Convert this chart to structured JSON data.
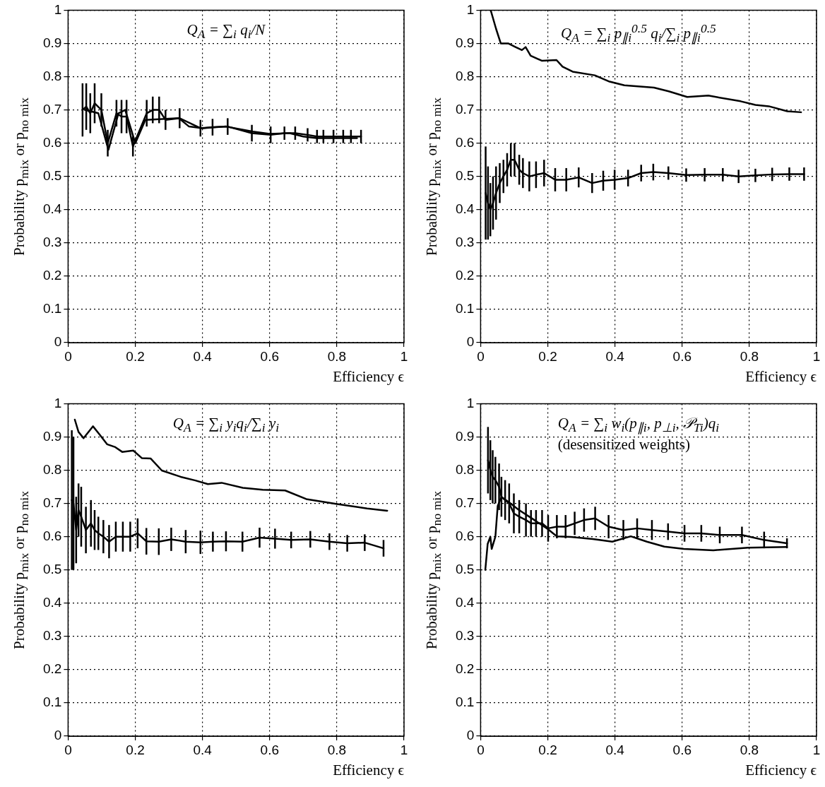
{
  "chart_data": [
    {
      "type": "line",
      "xlabel": "Efficiency ϵ",
      "ylabel": "Probability p$_{mix}$ or p$_{no mix}$",
      "annotations": [
        "Q$_{A}$ = ∑$_{i}$ q$_{i}$/N"
      ],
      "xlim": [
        0,
        1
      ],
      "ylim": [
        0,
        1
      ],
      "xticks": [
        0,
        0.2,
        0.4,
        0.6,
        0.8,
        1
      ],
      "yticks": [
        0,
        0.1,
        0.2,
        0.3,
        0.4,
        0.5,
        0.6,
        0.7,
        0.8,
        0.9,
        1
      ],
      "grid": true,
      "marker": "none",
      "series": [
        {
          "color": "#000000",
          "x": [
            0.043,
            0.054,
            0.066,
            0.079,
            0.099,
            0.118,
            0.144,
            0.159,
            0.174,
            0.193,
            0.234,
            0.252,
            0.271,
            0.29,
            0.332,
            0.394,
            0.43,
            0.475,
            0.547,
            0.603,
            0.644,
            0.676,
            0.713,
            0.741,
            0.76,
            0.79,
            0.819,
            0.842,
            0.872
          ],
          "values": [
            0.7,
            0.71,
            0.69,
            0.72,
            0.7,
            0.6,
            0.69,
            0.68,
            0.68,
            0.59,
            0.69,
            0.7,
            0.7,
            0.67,
            0.675,
            0.645,
            0.648,
            0.65,
            0.63,
            0.625,
            0.63,
            0.63,
            0.625,
            0.62,
            0.62,
            0.62,
            0.62,
            0.62,
            0.62
          ],
          "errors": [
            0.08,
            0.07,
            0.06,
            0.06,
            0.05,
            0.04,
            0.04,
            0.05,
            0.05,
            0.03,
            0.04,
            0.04,
            0.04,
            0.03,
            0.03,
            0.025,
            0.025,
            0.025,
            0.025,
            0.025,
            0.02,
            0.02,
            0.02,
            0.02,
            0.02,
            0.02,
            0.02,
            0.02,
            0.02
          ]
        },
        {
          "color": "#000000",
          "x": [
            0.05,
            0.09,
            0.12,
            0.15,
            0.17,
            0.2,
            0.23,
            0.33,
            0.36,
            0.4,
            0.47,
            0.55,
            0.6,
            0.66,
            0.7,
            0.74,
            0.8,
            0.86
          ],
          "values": [
            0.7,
            0.69,
            0.58,
            0.69,
            0.7,
            0.6,
            0.67,
            0.675,
            0.65,
            0.645,
            0.65,
            0.635,
            0.628,
            0.63,
            0.62,
            0.615,
            0.615,
            0.615
          ]
        }
      ]
    },
    {
      "type": "line",
      "xlabel": "Efficiency ϵ",
      "ylabel": "Probability p$_{mix}$ or p$_{no mix}$",
      "annotations": [
        "Q$_{A}$ = ∑$_{i}$ p$_{∥i}$$^{0.5}$ q$_{i}$/∑$_{i}$ p$_{∥i}$$^{0.5}$"
      ],
      "xlim": [
        0,
        1
      ],
      "ylim": [
        0,
        1
      ],
      "xticks": [
        0,
        0.2,
        0.4,
        0.6,
        0.8,
        1
      ],
      "yticks": [
        0,
        0.1,
        0.2,
        0.3,
        0.4,
        0.5,
        0.6,
        0.7,
        0.8,
        0.9,
        1
      ],
      "grid": true,
      "marker": "none",
      "series": [
        {
          "color": "#000000",
          "x": [
            0.015,
            0.022,
            0.029,
            0.037,
            0.046,
            0.057,
            0.068,
            0.079,
            0.09,
            0.101,
            0.115,
            0.126,
            0.145,
            0.165,
            0.189,
            0.222,
            0.255,
            0.292,
            0.332,
            0.365,
            0.399,
            0.439,
            0.478,
            0.514,
            0.559,
            0.612,
            0.667,
            0.721,
            0.768,
            0.818,
            0.868,
            0.919,
            0.963
          ],
          "values": [
            0.45,
            0.42,
            0.4,
            0.42,
            0.45,
            0.48,
            0.5,
            0.52,
            0.55,
            0.55,
            0.52,
            0.51,
            0.5,
            0.505,
            0.51,
            0.49,
            0.49,
            0.497,
            0.48,
            0.487,
            0.49,
            0.495,
            0.51,
            0.513,
            0.51,
            0.504,
            0.505,
            0.505,
            0.5,
            0.503,
            0.506,
            0.507,
            0.507
          ],
          "errors": [
            0.14,
            0.11,
            0.08,
            0.08,
            0.08,
            0.06,
            0.05,
            0.05,
            0.05,
            0.05,
            0.045,
            0.045,
            0.045,
            0.04,
            0.04,
            0.035,
            0.035,
            0.03,
            0.03,
            0.03,
            0.03,
            0.025,
            0.025,
            0.025,
            0.02,
            0.02,
            0.02,
            0.02,
            0.02,
            0.02,
            0.02,
            0.02,
            0.02
          ]
        },
        {
          "color": "#000000",
          "x": [
            0.03,
            0.046,
            0.06,
            0.082,
            0.104,
            0.123,
            0.134,
            0.149,
            0.182,
            0.226,
            0.244,
            0.274,
            0.34,
            0.384,
            0.428,
            0.516,
            0.56,
            0.615,
            0.678,
            0.774,
            0.818,
            0.858,
            0.913,
            0.954
          ],
          "values": [
            1,
            0.944,
            0.9,
            0.9,
            0.889,
            0.88,
            0.889,
            0.863,
            0.848,
            0.85,
            0.83,
            0.815,
            0.804,
            0.785,
            0.774,
            0.767,
            0.756,
            0.739,
            0.743,
            0.726,
            0.715,
            0.711,
            0.696,
            0.693
          ]
        }
      ]
    },
    {
      "type": "line",
      "xlabel": "Efficiency ϵ",
      "ylabel": "Probability p$_{mix}$ or p$_{no mix}$",
      "annotations": [
        "Q$_{A}$ = ∑$_{i}$ y$_{i}$q$_{i}$/∑$_{i}$ y$_{i}$"
      ],
      "xlim": [
        0,
        1
      ],
      "ylim": [
        0,
        1
      ],
      "xticks": [
        0,
        0.2,
        0.4,
        0.6,
        0.8,
        1
      ],
      "yticks": [
        0,
        0.1,
        0.2,
        0.3,
        0.4,
        0.5,
        0.6,
        0.7,
        0.8,
        0.9,
        1
      ],
      "grid": true,
      "marker": "none",
      "series": [
        {
          "color": "#000000",
          "x": [
            0.011,
            0.016,
            0.024,
            0.031,
            0.039,
            0.053,
            0.068,
            0.079,
            0.09,
            0.105,
            0.122,
            0.142,
            0.163,
            0.185,
            0.207,
            0.233,
            0.27,
            0.307,
            0.35,
            0.394,
            0.431,
            0.47,
            0.519,
            0.57,
            0.616,
            0.664,
            0.721,
            0.778,
            0.831,
            0.883,
            0.939
          ],
          "values": [
            0.71,
            0.7,
            0.62,
            0.68,
            0.66,
            0.62,
            0.64,
            0.62,
            0.61,
            0.6,
            0.585,
            0.6,
            0.6,
            0.6,
            0.61,
            0.586,
            0.585,
            0.592,
            0.585,
            0.583,
            0.585,
            0.586,
            0.585,
            0.597,
            0.594,
            0.59,
            0.592,
            0.585,
            0.58,
            0.582,
            0.565
          ],
          "errors": [
            0.21,
            0.2,
            0.1,
            0.08,
            0.09,
            0.07,
            0.07,
            0.06,
            0.05,
            0.05,
            0.05,
            0.045,
            0.045,
            0.045,
            0.045,
            0.04,
            0.04,
            0.035,
            0.035,
            0.035,
            0.03,
            0.03,
            0.03,
            0.03,
            0.03,
            0.025,
            0.025,
            0.025,
            0.025,
            0.025,
            0.025
          ]
        },
        {
          "color": "#000000",
          "x": [
            0.02,
            0.031,
            0.046,
            0.074,
            0.094,
            0.116,
            0.139,
            0.161,
            0.194,
            0.22,
            0.246,
            0.279,
            0.335,
            0.379,
            0.416,
            0.457,
            0.52,
            0.579,
            0.646,
            0.709,
            0.801,
            0.89,
            0.95
          ],
          "values": [
            0.952,
            0.915,
            0.896,
            0.932,
            0.907,
            0.878,
            0.87,
            0.855,
            0.859,
            0.836,
            0.835,
            0.799,
            0.78,
            0.769,
            0.758,
            0.762,
            0.747,
            0.741,
            0.739,
            0.713,
            0.698,
            0.685,
            0.678
          ]
        }
      ]
    },
    {
      "type": "line",
      "xlabel": "Efficiency ϵ",
      "ylabel": "Probability p$_{mix}$ or p$_{no mix}$",
      "annotations": [
        "Q$_{A}$ = ∑$_{i}$ w$_{i}$(p$_{∥i}$, p$_{⊥i}$, 𝒫$_{Ti}$)q$_{i}$",
        "(desensitized weights)"
      ],
      "xlim": [
        0,
        1
      ],
      "ylim": [
        0,
        1
      ],
      "xticks": [
        0,
        0.2,
        0.4,
        0.6,
        0.8,
        1
      ],
      "yticks": [
        0,
        0.1,
        0.2,
        0.3,
        0.4,
        0.5,
        0.6,
        0.7,
        0.8,
        0.9,
        1
      ],
      "grid": true,
      "marker": "none",
      "series": [
        {
          "color": "#000000",
          "x": [
            0.022,
            0.029,
            0.036,
            0.044,
            0.055,
            0.062,
            0.073,
            0.085,
            0.099,
            0.115,
            0.135,
            0.15,
            0.165,
            0.183,
            0.201,
            0.227,
            0.253,
            0.28,
            0.308,
            0.341,
            0.381,
            0.425,
            0.466,
            0.51,
            0.558,
            0.607,
            0.657,
            0.712,
            0.778,
            0.844,
            0.912
          ],
          "values": [
            0.83,
            0.8,
            0.78,
            0.77,
            0.75,
            0.72,
            0.71,
            0.7,
            0.67,
            0.66,
            0.65,
            0.64,
            0.64,
            0.64,
            0.625,
            0.63,
            0.63,
            0.64,
            0.65,
            0.655,
            0.63,
            0.62,
            0.625,
            0.62,
            0.615,
            0.61,
            0.61,
            0.605,
            0.605,
            0.59,
            0.58
          ],
          "errors": [
            0.1,
            0.09,
            0.08,
            0.07,
            0.07,
            0.06,
            0.06,
            0.06,
            0.06,
            0.05,
            0.05,
            0.04,
            0.04,
            0.04,
            0.04,
            0.035,
            0.035,
            0.035,
            0.035,
            0.035,
            0.035,
            0.03,
            0.03,
            0.03,
            0.025,
            0.025,
            0.025,
            0.025,
            0.025,
            0.025,
            0.015
          ]
        },
        {
          "color": "#000000",
          "x": [
            0.014,
            0.021,
            0.029,
            0.033,
            0.044,
            0.051,
            0.062,
            0.084,
            0.113,
            0.157,
            0.201,
            0.227,
            0.268,
            0.334,
            0.392,
            0.447,
            0.495,
            0.547,
            0.605,
            0.693,
            0.796,
            0.912
          ],
          "values": [
            0.5,
            0.578,
            0.6,
            0.563,
            0.6,
            0.693,
            0.719,
            0.704,
            0.681,
            0.652,
            0.622,
            0.601,
            0.599,
            0.593,
            0.585,
            0.601,
            0.585,
            0.57,
            0.563,
            0.559,
            0.567,
            0.569
          ]
        }
      ]
    }
  ]
}
